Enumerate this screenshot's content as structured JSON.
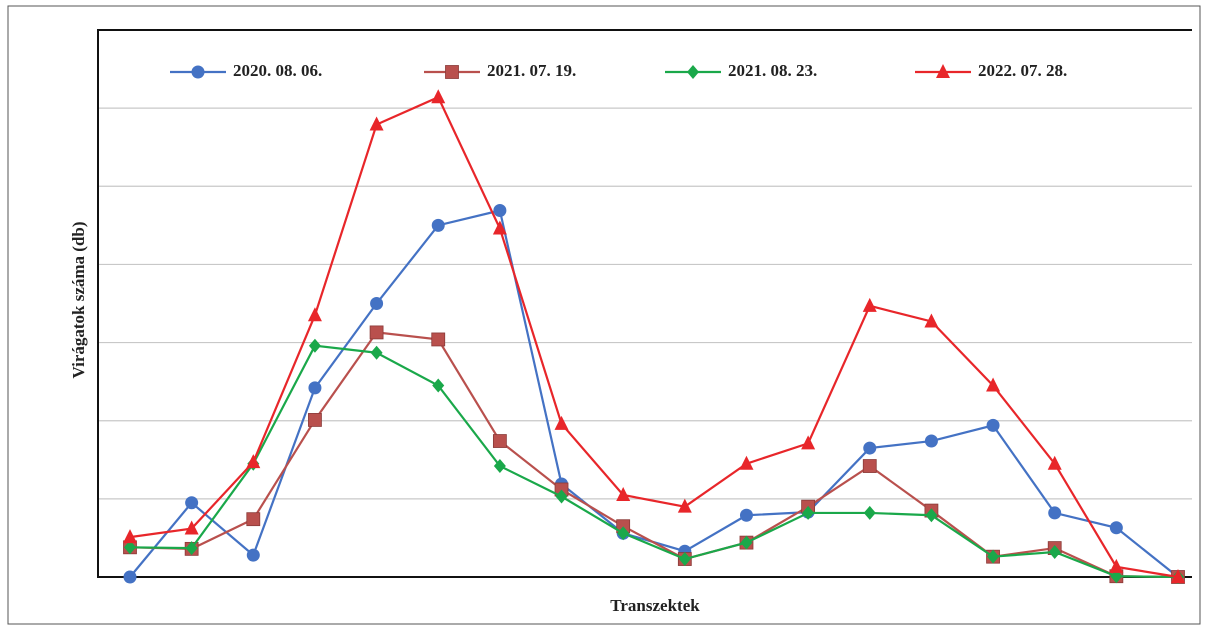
{
  "chart_data": {
    "type": "line",
    "y_label": "Virágatok száma (db)",
    "x_label": "Transzektek",
    "categories": [
      null,
      null,
      null,
      null,
      null,
      null,
      null,
      null,
      null,
      null,
      null,
      null,
      null,
      null,
      null,
      null,
      null,
      null
    ],
    "ylim": [
      0,
      7
    ],
    "yticks": [
      0,
      1,
      2,
      3,
      4,
      5,
      6
    ],
    "grid": true,
    "legend": "top",
    "series": [
      {
        "name": "2020. 08. 06.",
        "color": "#4472c4",
        "marker": "circle",
        "values": [
          0,
          0.95,
          0.28,
          2.42,
          3.5,
          4.5,
          4.69,
          1.19,
          0.56,
          0.33,
          0.79,
          0.83,
          1.65,
          1.74,
          1.94,
          0.82,
          0.63,
          0
        ]
      },
      {
        "name": "2021. 07. 19.",
        "color": "#b9504d",
        "marker": "square",
        "values": [
          0.38,
          0.36,
          0.74,
          2.01,
          3.13,
          3.04,
          1.74,
          1.12,
          0.65,
          0.23,
          0.44,
          0.9,
          1.42,
          0.85,
          0.26,
          0.37,
          0.01,
          0
        ]
      },
      {
        "name": "2021. 08. 23.",
        "color": "#1aa84a",
        "marker": "diamond",
        "values": [
          0.38,
          0.37,
          1.45,
          2.96,
          2.87,
          2.45,
          1.42,
          1.03,
          0.56,
          0.23,
          0.44,
          0.82,
          0.82,
          0.79,
          0.26,
          0.32,
          0.01,
          0
        ]
      },
      {
        "name": "2022. 07. 28.",
        "color": "#e8262a",
        "marker": "triangle",
        "values": [
          0.51,
          0.62,
          1.47,
          3.35,
          5.79,
          6.14,
          4.46,
          1.96,
          1.05,
          0.9,
          1.45,
          1.71,
          3.47,
          3.27,
          2.45,
          1.45,
          0.13,
          0
        ]
      }
    ]
  }
}
